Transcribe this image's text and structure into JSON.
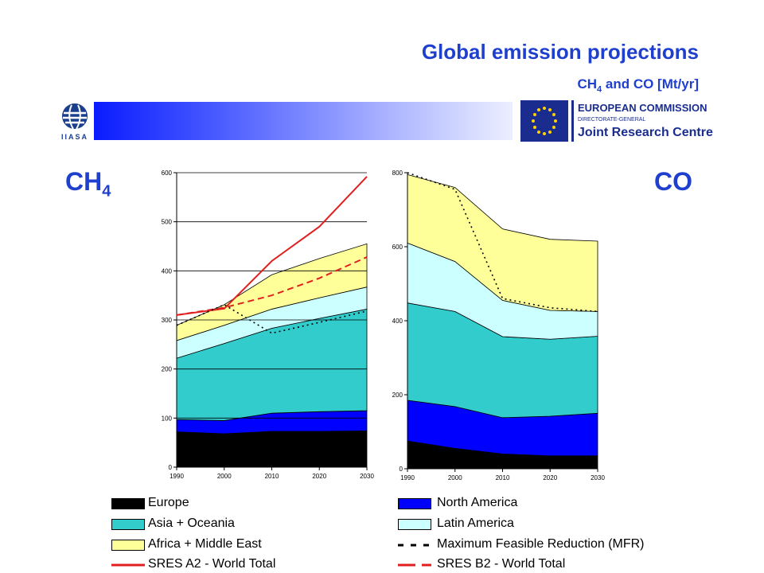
{
  "header": {
    "title": "Global emission projections",
    "subtitle_pre": "CH",
    "subtitle_sub": "4",
    "subtitle_post": " and CO [Mt/yr]"
  },
  "logos": {
    "iiasa_text": "IIASA",
    "ec_line1": "EUROPEAN COMMISSION",
    "ec_line2": "DIRECTORATE-GENERAL",
    "ec_line3": "Joint Research Centre"
  },
  "labels": {
    "ch4_main": "CH",
    "ch4_sub": "4",
    "co": "CO"
  },
  "colors": {
    "europe": "#000000",
    "north_america": "#0000ff",
    "asia_oceania": "#33cccc",
    "latin_america": "#ccffff",
    "africa_middle_east": "#ffff99",
    "sres_line": "#e02020",
    "title_blue": "#1f3fcf"
  },
  "legend": [
    {
      "label": "Europe",
      "kind": "box",
      "color": "#000000"
    },
    {
      "label": "North America",
      "kind": "box",
      "color": "#0000ff"
    },
    {
      "label": "Asia + Oceania",
      "kind": "box",
      "color": "#33cccc"
    },
    {
      "label": "Latin America",
      "kind": "box",
      "color": "#ccffff"
    },
    {
      "label": "Africa + Middle East",
      "kind": "box",
      "color": "#ffff99"
    },
    {
      "label": "Maximum Feasible Reduction (MFR)",
      "kind": "dash-black"
    },
    {
      "label": "SRES A2 - World Total",
      "kind": "line-red"
    },
    {
      "label": "SRES B2 - World Total",
      "kind": "dash-red"
    }
  ],
  "chart_data": [
    {
      "type": "area",
      "title": "",
      "x": [
        1990,
        2000,
        2010,
        2020,
        2030
      ],
      "ylim": [
        0,
        600
      ],
      "yticks": [
        0,
        100,
        200,
        300,
        400,
        500,
        600
      ],
      "grid": true,
      "series_cumulative_tops": [
        {
          "name": "Europe",
          "values": [
            72,
            68,
            73,
            73,
            74
          ]
        },
        {
          "name": "North America",
          "values": [
            97,
            95,
            110,
            113,
            115
          ]
        },
        {
          "name": "Asia + Oceania",
          "values": [
            222,
            252,
            283,
            303,
            322
          ]
        },
        {
          "name": "Latin America",
          "values": [
            258,
            289,
            322,
            345,
            367
          ]
        },
        {
          "name": "Africa + Middle East",
          "values": [
            289,
            331,
            392,
            425,
            455
          ]
        }
      ],
      "lines": [
        {
          "name": "SRES A2 - World Total",
          "values": [
            310,
            323,
            420,
            490,
            592
          ]
        },
        {
          "name": "SRES B2 - World Total",
          "values": [
            310,
            325,
            350,
            385,
            428
          ]
        },
        {
          "name": "Maximum Feasible Reduction (MFR)",
          "values": [
            289,
            331,
            273,
            295,
            318
          ]
        }
      ]
    },
    {
      "type": "area",
      "title": "",
      "x": [
        1990,
        2000,
        2010,
        2020,
        2030
      ],
      "ylim": [
        0,
        800
      ],
      "yticks": [
        0,
        200,
        400,
        600,
        800
      ],
      "grid": false,
      "series_cumulative_tops": [
        {
          "name": "Europe",
          "values": [
            75,
            55,
            40,
            35,
            35
          ]
        },
        {
          "name": "North America",
          "values": [
            185,
            168,
            138,
            142,
            150
          ]
        },
        {
          "name": "Asia + Oceania",
          "values": [
            448,
            425,
            357,
            350,
            358
          ]
        },
        {
          "name": "Latin America",
          "values": [
            610,
            560,
            455,
            428,
            425
          ]
        },
        {
          "name": "Africa + Middle East",
          "values": [
            795,
            760,
            648,
            620,
            615
          ]
        }
      ],
      "lines": [
        {
          "name": "Maximum Feasible Reduction (MFR)",
          "values": [
            800,
            755,
            460,
            435,
            425
          ]
        }
      ]
    }
  ]
}
